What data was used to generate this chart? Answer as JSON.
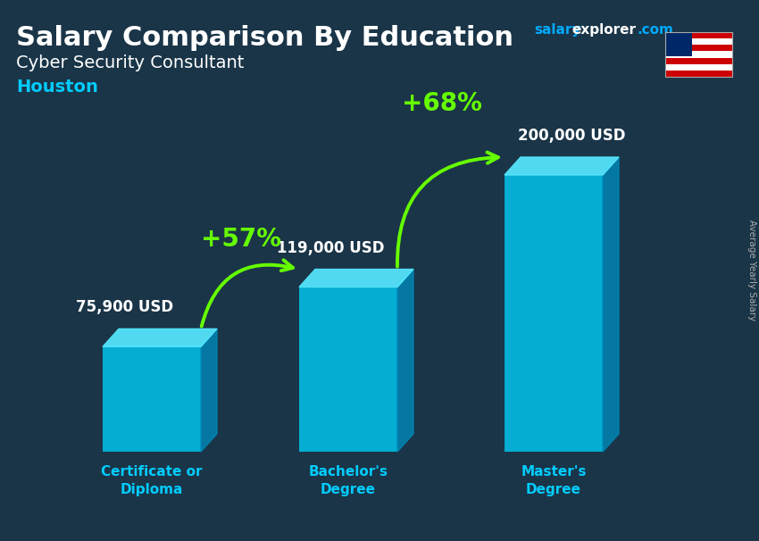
{
  "title": "Salary Comparison By Education",
  "subtitle": "Cyber Security Consultant",
  "city": "Houston",
  "watermark_salary": "salary",
  "watermark_explorer": "explorer",
  "watermark_com": ".com",
  "ylabel": "Average Yearly Salary",
  "categories": [
    "Certificate or\nDiploma",
    "Bachelor's\nDegree",
    "Master's\nDegree"
  ],
  "values": [
    75900,
    119000,
    200000
  ],
  "value_labels": [
    "75,900 USD",
    "119,000 USD",
    "200,000 USD"
  ],
  "pct_labels": [
    "+57%",
    "+68%"
  ],
  "bar_face_color": "#00c8f0",
  "bar_top_color": "#55e8ff",
  "bar_side_color": "#0088b8",
  "arrow_color": "#66ff00",
  "title_color": "#ffffff",
  "subtitle_color": "#ffffff",
  "city_color": "#00ccff",
  "category_color": "#00ccff",
  "watermark_salary_color": "#00aaff",
  "watermark_other_color": "#ffffff",
  "value_label_color": "#ffffff",
  "ylabel_color": "#aaaaaa",
  "bg_overlay_color": "#1a3548",
  "bg_overlay_alpha": 0.62,
  "figsize": [
    8.5,
    6.06
  ],
  "dpi": 100
}
